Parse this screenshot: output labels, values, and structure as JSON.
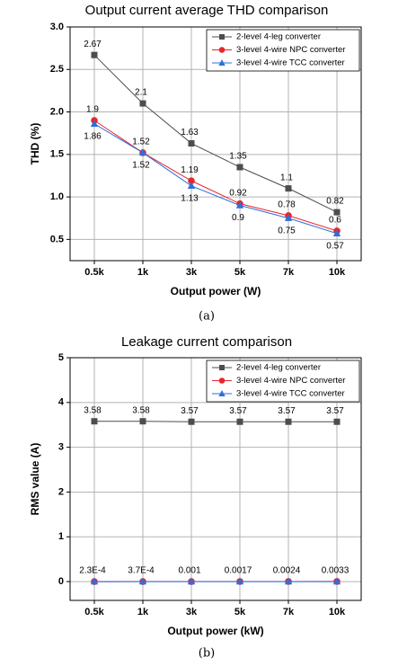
{
  "chart_data": [
    {
      "type": "line",
      "title": "Output current average THD comparison",
      "x_label": "Output power (W)",
      "y_label": "THD (%)",
      "caption": "(a)",
      "categories": [
        "0.5k",
        "1k",
        "3k",
        "5k",
        "7k",
        "10k"
      ],
      "series": [
        {
          "name": "2-level 4-leg converter",
          "color": "#4d4d4d",
          "marker": "square",
          "label_position": "above",
          "values": [
            2.67,
            2.1,
            1.63,
            1.35,
            1.1,
            0.82
          ]
        },
        {
          "name": "3-level 4-wire NPC converter",
          "color": "#e8262b",
          "marker": "circle",
          "label_position": "above",
          "values": [
            1.9,
            1.52,
            1.19,
            0.92,
            0.78,
            0.6
          ]
        },
        {
          "name": "3-level 4-wire TCC converter",
          "color": "#2e6fd8",
          "marker": "triangle",
          "label_position": "below",
          "values": [
            1.86,
            1.52,
            1.13,
            0.9,
            0.75,
            0.57
          ]
        }
      ],
      "ylim": [
        0.25,
        3.0
      ],
      "yticks": [
        0.5,
        {
          "value": 1.0,
          "label": "1.0"
        },
        1.5,
        {
          "value": 2.0,
          "label": "2.0"
        },
        2.5,
        {
          "value": 3.0,
          "label": "3.0"
        }
      ],
      "grid": true,
      "legend": "upper right"
    },
    {
      "type": "line",
      "title": "Leakage current comparison",
      "x_label": "Output power (kW)",
      "y_label": "RMS value (A)",
      "caption": "(b)",
      "categories": [
        "0.5k",
        "1k",
        "3k",
        "5k",
        "7k",
        "10k"
      ],
      "series": [
        {
          "name": "2-level 4-leg converter",
          "color": "#4d4d4d",
          "marker": "square",
          "label_position": "above",
          "values": [
            3.58,
            3.58,
            3.57,
            3.57,
            3.57,
            3.57
          ]
        },
        {
          "name": "3-level 4-wire NPC converter",
          "color": "#e8262b",
          "marker": "circle",
          "label_position": "above",
          "values": [
            0.00023,
            0.00037,
            0.001,
            0.0017,
            0.0024,
            0.0033
          ],
          "value_labels": [
            "2.3E-4",
            "3.7E-4",
            "0.001",
            "0.0017",
            "0.0024",
            "0.0033"
          ]
        },
        {
          "name": "3-level 4-wire TCC converter",
          "color": "#2e6fd8",
          "marker": "triangle",
          "values": [
            0,
            0,
            0,
            0,
            0,
            0
          ]
        }
      ],
      "ylim": [
        -0.42,
        5
      ],
      "yticks": [
        0,
        1,
        2,
        3,
        4,
        5
      ],
      "grid": true,
      "legend": "upper right"
    }
  ]
}
